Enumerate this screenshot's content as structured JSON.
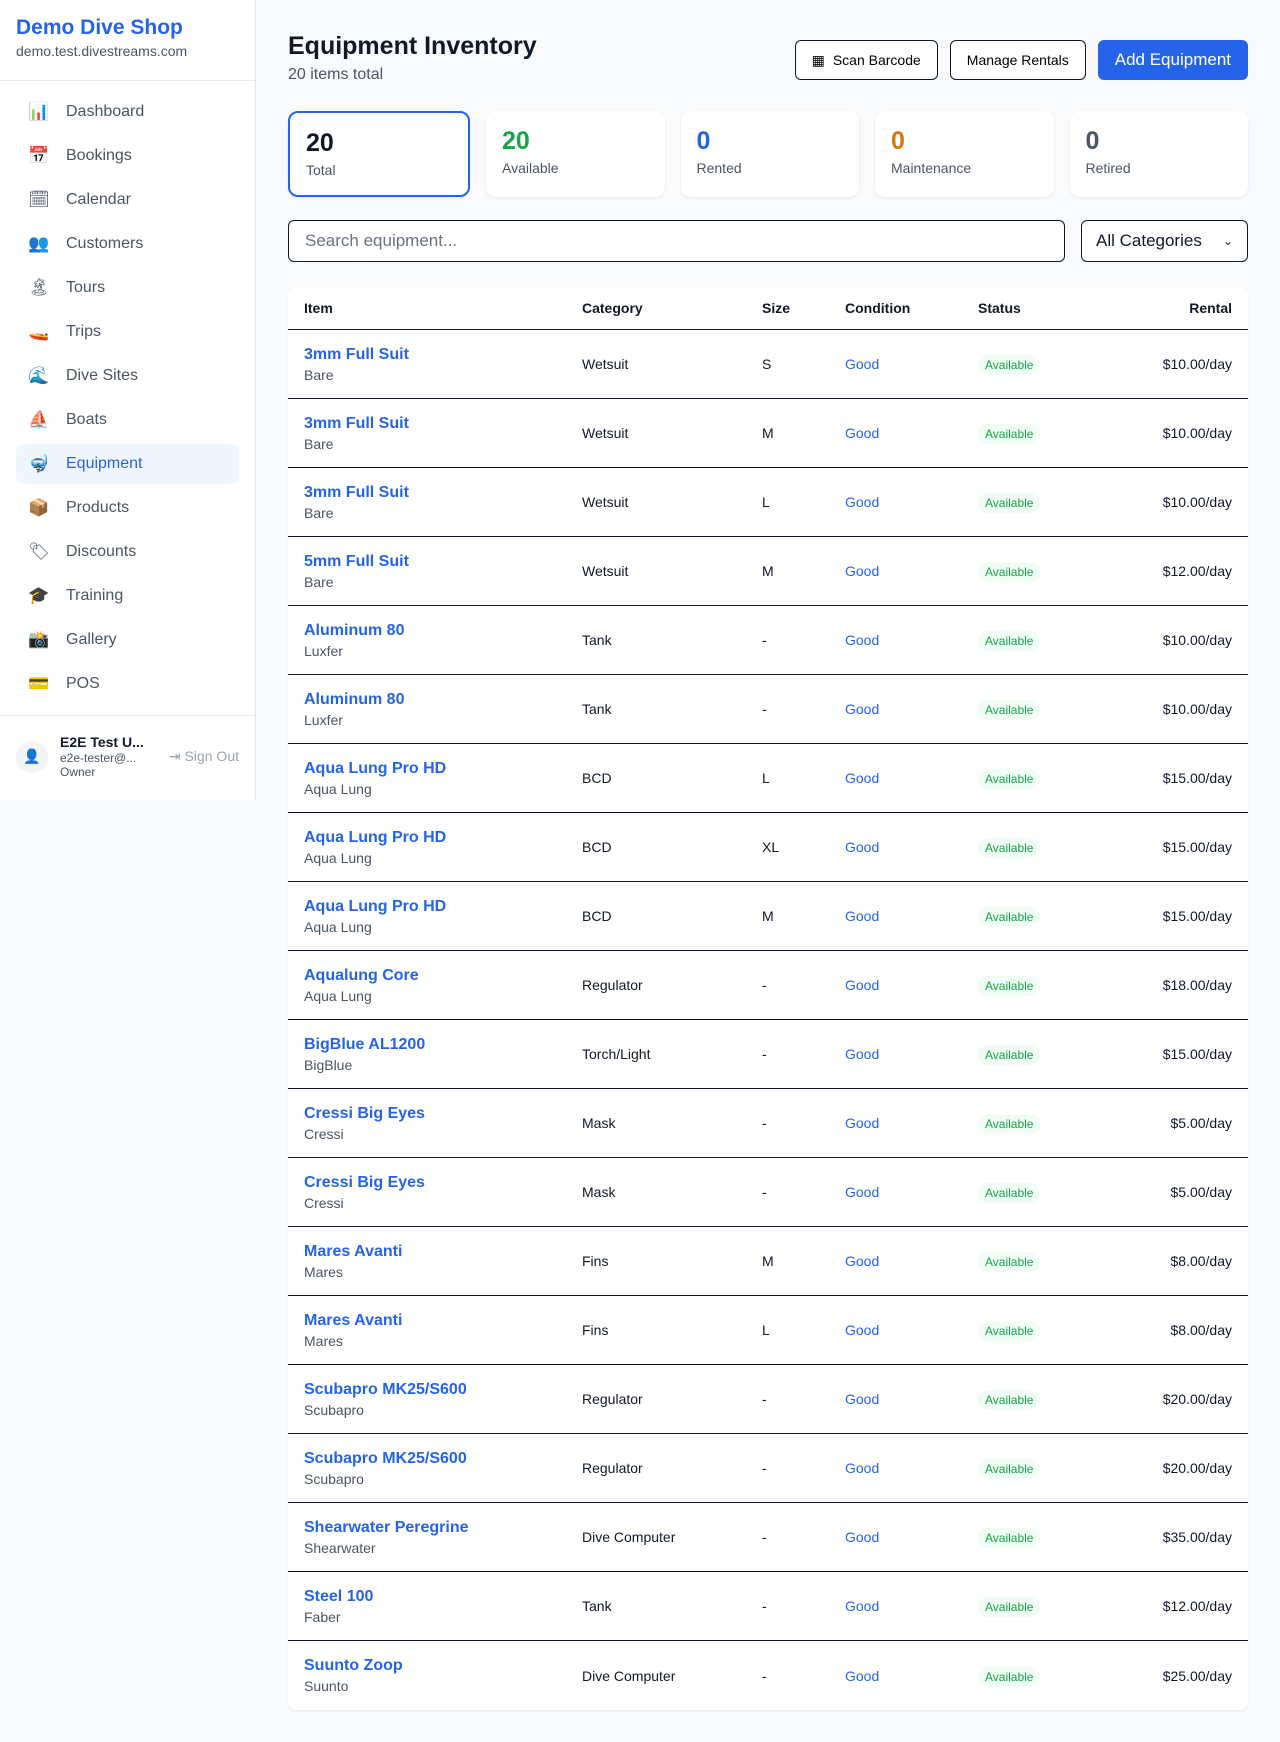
{
  "sidebar": {
    "brand": "Demo Dive Shop",
    "domain": "demo.test.divestreams.com",
    "items": [
      {
        "label": "Dashboard",
        "icon": "📊"
      },
      {
        "label": "Bookings",
        "icon": "📅"
      },
      {
        "label": "Calendar",
        "icon": "🗓"
      },
      {
        "label": "Customers",
        "icon": "👥"
      },
      {
        "label": "Tours",
        "icon": "🏝"
      },
      {
        "label": "Trips",
        "icon": "🚤"
      },
      {
        "label": "Dive Sites",
        "icon": "🌊"
      },
      {
        "label": "Boats",
        "icon": "⛵"
      },
      {
        "label": "Equipment",
        "icon": "🤿"
      },
      {
        "label": "Products",
        "icon": "📦"
      },
      {
        "label": "Discounts",
        "icon": "🏷"
      },
      {
        "label": "Training",
        "icon": "🎓"
      },
      {
        "label": "Gallery",
        "icon": "📸"
      },
      {
        "label": "POS",
        "icon": "💳"
      }
    ],
    "active": "Equipment",
    "user": {
      "name": "E2E Test U...",
      "email": "e2e-tester@...",
      "role": "Owner",
      "signout": "Sign Out"
    }
  },
  "header": {
    "title": "Equipment Inventory",
    "subtitle": "20 items total",
    "scan": "Scan Barcode",
    "manage": "Manage Rentals",
    "add": "Add Equipment"
  },
  "stats": [
    {
      "value": "20",
      "label": "Total",
      "color": "#111827"
    },
    {
      "value": "20",
      "label": "Available",
      "color": "#16a34a"
    },
    {
      "value": "0",
      "label": "Rented",
      "color": "#2563eb"
    },
    {
      "value": "0",
      "label": "Maintenance",
      "color": "#d97706"
    },
    {
      "value": "0",
      "label": "Retired",
      "color": "#4b5563"
    }
  ],
  "filters": {
    "search_placeholder": "Search equipment...",
    "category": "All Categories"
  },
  "table": {
    "headers": [
      "Item",
      "Category",
      "Size",
      "Condition",
      "Status",
      "Rental"
    ],
    "rows": [
      [
        "3mm Full Suit",
        "Bare",
        "Wetsuit",
        "S",
        "Good",
        "Available",
        "$10.00/day"
      ],
      [
        "3mm Full Suit",
        "Bare",
        "Wetsuit",
        "M",
        "Good",
        "Available",
        "$10.00/day"
      ],
      [
        "3mm Full Suit",
        "Bare",
        "Wetsuit",
        "L",
        "Good",
        "Available",
        "$10.00/day"
      ],
      [
        "5mm Full Suit",
        "Bare",
        "Wetsuit",
        "M",
        "Good",
        "Available",
        "$12.00/day"
      ],
      [
        "Aluminum 80",
        "Luxfer",
        "Tank",
        "-",
        "Good",
        "Available",
        "$10.00/day"
      ],
      [
        "Aluminum 80",
        "Luxfer",
        "Tank",
        "-",
        "Good",
        "Available",
        "$10.00/day"
      ],
      [
        "Aqua Lung Pro HD",
        "Aqua Lung",
        "BCD",
        "L",
        "Good",
        "Available",
        "$15.00/day"
      ],
      [
        "Aqua Lung Pro HD",
        "Aqua Lung",
        "BCD",
        "XL",
        "Good",
        "Available",
        "$15.00/day"
      ],
      [
        "Aqua Lung Pro HD",
        "Aqua Lung",
        "BCD",
        "M",
        "Good",
        "Available",
        "$15.00/day"
      ],
      [
        "Aqualung Core",
        "Aqua Lung",
        "Regulator",
        "-",
        "Good",
        "Available",
        "$18.00/day"
      ],
      [
        "BigBlue AL1200",
        "BigBlue",
        "Torch/Light",
        "-",
        "Good",
        "Available",
        "$15.00/day"
      ],
      [
        "Cressi Big Eyes",
        "Cressi",
        "Mask",
        "-",
        "Good",
        "Available",
        "$5.00/day"
      ],
      [
        "Cressi Big Eyes",
        "Cressi",
        "Mask",
        "-",
        "Good",
        "Available",
        "$5.00/day"
      ],
      [
        "Mares Avanti",
        "Mares",
        "Fins",
        "M",
        "Good",
        "Available",
        "$8.00/day"
      ],
      [
        "Mares Avanti",
        "Mares",
        "Fins",
        "L",
        "Good",
        "Available",
        "$8.00/day"
      ],
      [
        "Scubapro MK25/S600",
        "Scubapro",
        "Regulator",
        "-",
        "Good",
        "Available",
        "$20.00/day"
      ],
      [
        "Scubapro MK25/S600",
        "Scubapro",
        "Regulator",
        "-",
        "Good",
        "Available",
        "$20.00/day"
      ],
      [
        "Shearwater Peregrine",
        "Shearwater",
        "Dive Computer",
        "-",
        "Good",
        "Available",
        "$35.00/day"
      ],
      [
        "Steel 100",
        "Faber",
        "Tank",
        "-",
        "Good",
        "Available",
        "$12.00/day"
      ],
      [
        "Suunto Zoop",
        "Suunto",
        "Dive Computer",
        "-",
        "Good",
        "Available",
        "$25.00/day"
      ]
    ]
  }
}
